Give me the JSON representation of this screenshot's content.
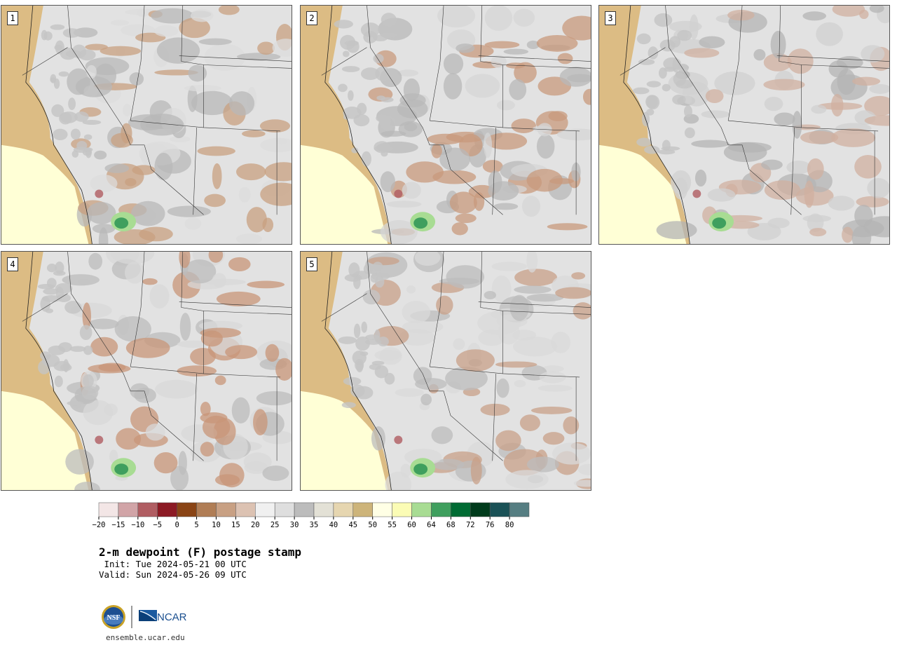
{
  "panels": [
    {
      "label": "1",
      "colors": [
        "#dcbc84",
        "#dcdcdc",
        "#b8b8b8",
        "#c8a080"
      ]
    },
    {
      "label": "2",
      "colors": [
        "#dcbc84",
        "#d6d6d6",
        "#b8b8b8",
        "#c89a7c"
      ]
    },
    {
      "label": "3",
      "colors": [
        "#dcbc84",
        "#d0d0d0",
        "#b4b4b4",
        "#d0b0a0"
      ]
    },
    {
      "label": "4",
      "colors": [
        "#dcbc84",
        "#d8d8d8",
        "#bcbcbc",
        "#c89678"
      ]
    },
    {
      "label": "5",
      "colors": [
        "#dcbc84",
        "#dadada",
        "#bcbcbc",
        "#c8a088"
      ]
    }
  ],
  "colorbar": {
    "colors": [
      "#f3e6e6",
      "#d1a4a7",
      "#b05d62",
      "#8c1a24",
      "#8a4415",
      "#b07d55",
      "#c8a083",
      "#dcc2b2",
      "#f0f0f0",
      "#dedede",
      "#bcbcbc",
      "#e3e1d6",
      "#e6d6b0",
      "#cdb47a",
      "#ffffe5",
      "#fbfcb5",
      "#a8dc93",
      "#3f9f5e",
      "#006b33",
      "#003b1c",
      "#1b5257",
      "#567e82"
    ],
    "ticks": [
      "−20",
      "−15",
      "−10",
      "−5",
      "0",
      "5",
      "10",
      "15",
      "20",
      "25",
      "30",
      "35",
      "40",
      "45",
      "50",
      "55",
      "60",
      "64",
      "68",
      "72",
      "76",
      "80"
    ]
  },
  "title": "2-m dewpoint (F) postage stamp",
  "init": " Init: Tue 2024-05-21 00 UTC",
  "valid": "Valid: Sun 2024-05-26 09 UTC",
  "logos": {
    "nsf": "NSF",
    "ncar": "NCAR"
  },
  "url": "ensemble.ucar.edu"
}
